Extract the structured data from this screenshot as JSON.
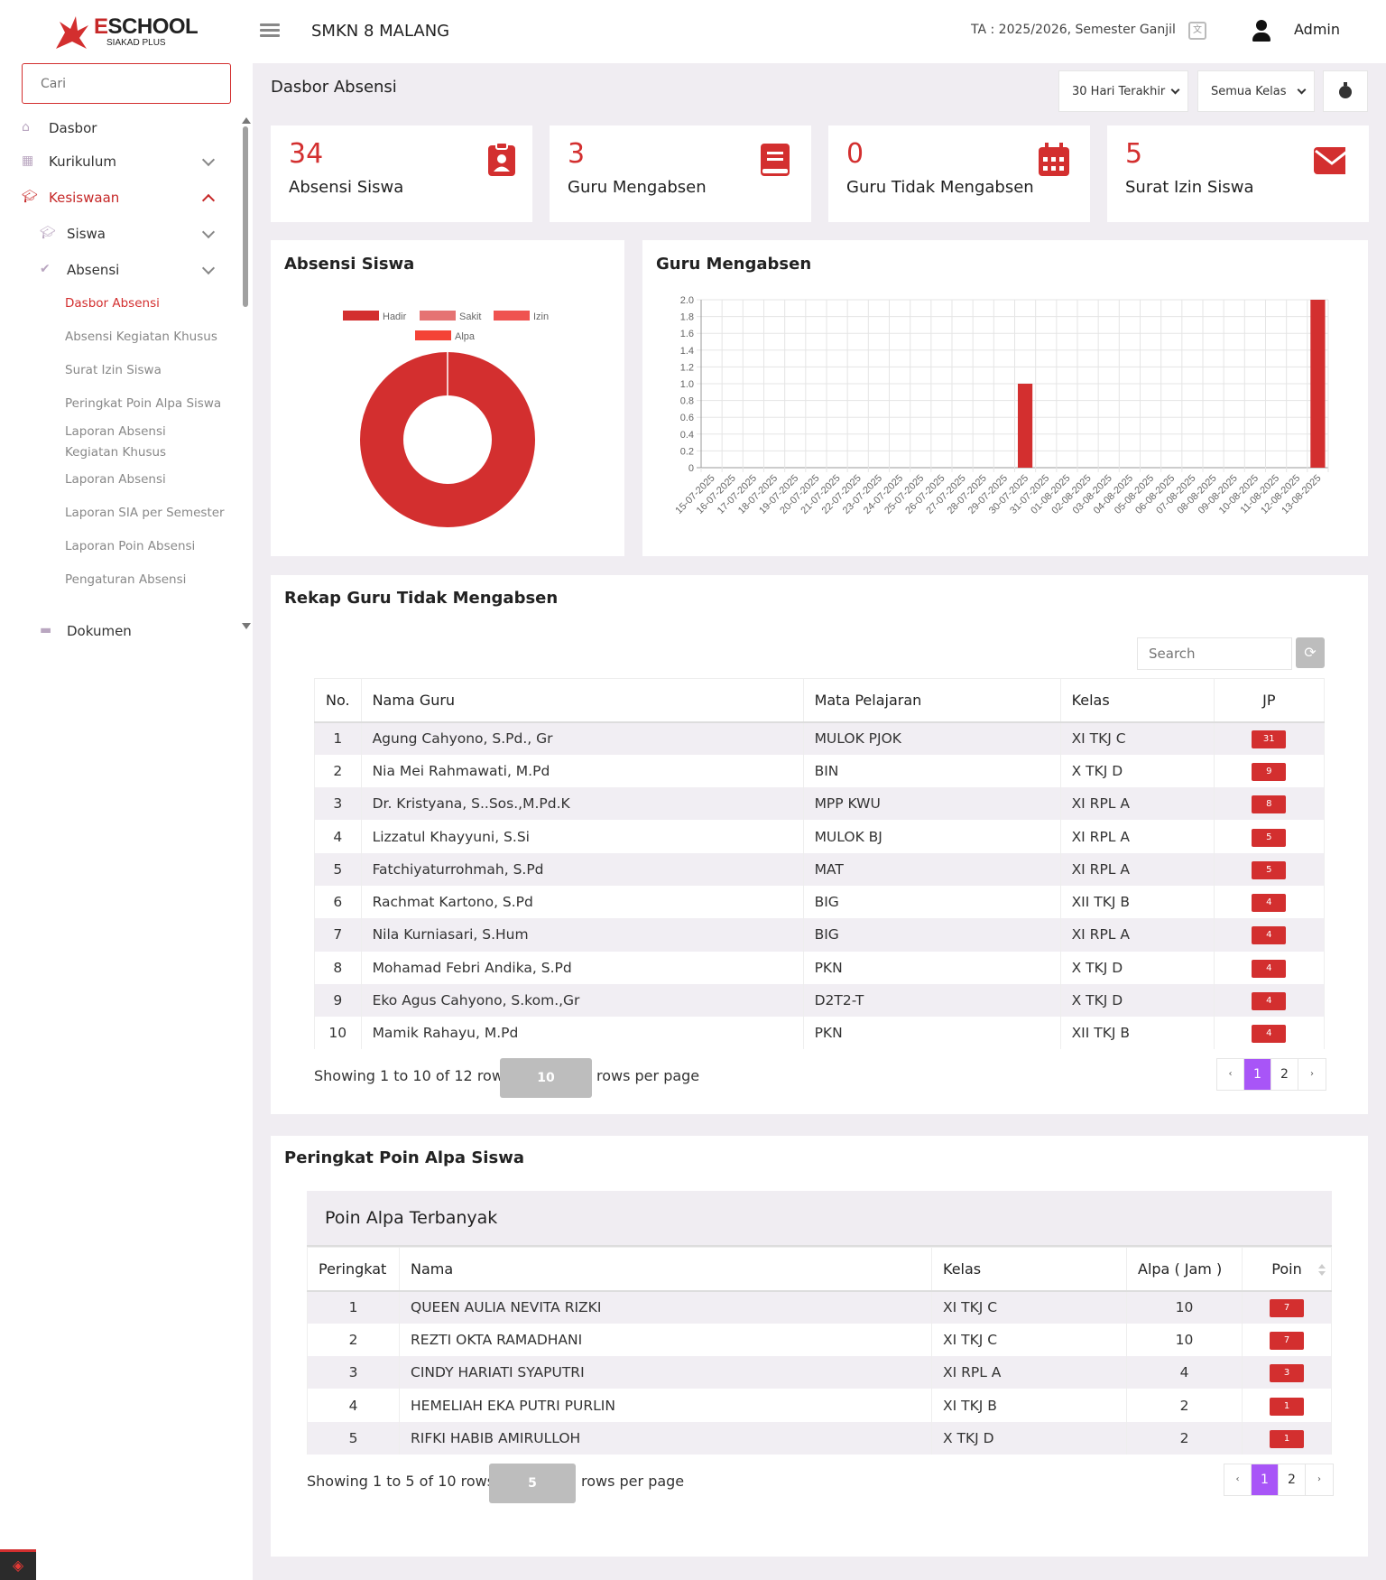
{
  "header": {
    "brand_e": "E",
    "brand_rest": "SCHOOL",
    "brand_sub": "SIAKAD PLUS",
    "school": "SMKN 8 MALANG",
    "ta": "TA : 2025/2026, Semester Ganjil",
    "user": "Admin"
  },
  "sidebar": {
    "search_placeholder": "Cari",
    "dasbor": "Dasbor",
    "kurikulum": "Kurikulum",
    "kesiswaan": "Kesiswaan",
    "siswa": "Siswa",
    "absensi": "Absensi",
    "links": [
      "Dasbor Absensi",
      "Absensi Kegiatan Khusus",
      "Surat Izin Siswa",
      "Peringkat Poin Alpa Siswa",
      "Laporan Absensi Kegiatan Khusus",
      "Laporan Absensi",
      "Laporan SIA per Semester",
      "Laporan Poin Absensi",
      "Pengaturan Absensi"
    ],
    "dokumen": "Dokumen"
  },
  "page": {
    "title": "Dasbor Absensi",
    "range_select": "30 Hari Terakhir",
    "class_select": "Semua Kelas"
  },
  "stats": [
    {
      "value": "34",
      "label": "Absensi Siswa",
      "icon": "clipboard-user-icon"
    },
    {
      "value": "3",
      "label": "Guru Mengabsen",
      "icon": "book-icon"
    },
    {
      "value": "0",
      "label": "Guru Tidak Mengabsen",
      "icon": "calendar-icon"
    },
    {
      "value": "5",
      "label": "Surat Izin Siswa",
      "icon": "envelope-icon"
    }
  ],
  "colors": {
    "accent": "#d32f2f",
    "pager_active": "#a855f7"
  },
  "chart_data": [
    {
      "type": "pie",
      "title": "Absensi Siswa",
      "labels": [
        "Hadir",
        "Sakit",
        "Izin",
        "Alpa"
      ],
      "values": [
        34,
        0,
        0,
        0
      ],
      "colors": [
        "#d32f2f",
        "#e57373",
        "#ef5350",
        "#f44336"
      ],
      "legend": "top"
    },
    {
      "type": "bar",
      "title": "Guru Mengabsen",
      "categories": [
        "15-07-2025",
        "16-07-2025",
        "17-07-2025",
        "18-07-2025",
        "19-07-2025",
        "20-07-2025",
        "21-07-2025",
        "22-07-2025",
        "23-07-2025",
        "24-07-2025",
        "25-07-2025",
        "26-07-2025",
        "27-07-2025",
        "28-07-2025",
        "29-07-2025",
        "30-07-2025",
        "31-07-2025",
        "01-08-2025",
        "02-08-2025",
        "03-08-2025",
        "04-08-2025",
        "05-08-2025",
        "06-08-2025",
        "07-08-2025",
        "08-08-2025",
        "09-08-2025",
        "10-08-2025",
        "11-08-2025",
        "12-08-2025",
        "13-08-2025"
      ],
      "values": [
        0,
        0,
        0,
        0,
        0,
        0,
        0,
        0,
        0,
        0,
        0,
        0,
        0,
        0,
        0,
        1,
        0,
        0,
        0,
        0,
        0,
        0,
        0,
        0,
        0,
        0,
        0,
        0,
        0,
        2
      ],
      "yticks": [
        "0",
        "0.2",
        "0.4",
        "0.6",
        "0.8",
        "1.0",
        "1.2",
        "1.4",
        "1.6",
        "1.8",
        "2.0"
      ],
      "ylim": [
        0,
        2
      ]
    }
  ],
  "rekap": {
    "title": "Rekap Guru Tidak Mengabsen",
    "search_placeholder": "Search",
    "columns": [
      "No.",
      "Nama Guru",
      "Mata Pelajaran",
      "Kelas",
      "JP"
    ],
    "rows": [
      [
        "1",
        "Agung Cahyono, S.Pd., Gr",
        "MULOK PJOK",
        "XI TKJ C",
        "31"
      ],
      [
        "2",
        "Nia Mei Rahmawati, M.Pd",
        "BIN",
        "X TKJ D",
        "9"
      ],
      [
        "3",
        "Dr. Kristyana, S..Sos.,M.Pd.K",
        "MPP KWU",
        "XI RPL A",
        "8"
      ],
      [
        "4",
        "Lizzatul Khayyuni, S.Si",
        "MULOK BJ",
        "XI RPL A",
        "5"
      ],
      [
        "5",
        "Fatchiyaturrohmah, S.Pd",
        "MAT",
        "XI RPL A",
        "5"
      ],
      [
        "6",
        "Rachmat Kartono, S.Pd",
        "BIG",
        "XII TKJ B",
        "4"
      ],
      [
        "7",
        "Nila Kurniasari, S.Hum",
        "BIG",
        "XI RPL A",
        "4"
      ],
      [
        "8",
        "Mohamad Febri Andika, S.Pd",
        "PKN",
        "X TKJ D",
        "4"
      ],
      [
        "9",
        "Eko Agus Cahyono, S.kom.,Gr",
        "D2T2-T",
        "X TKJ D",
        "4"
      ],
      [
        "10",
        "Mamik Rahayu, M.Pd",
        "PKN",
        "XII TKJ B",
        "4"
      ]
    ],
    "showing": "Showing 1 to 10 of 12 rows",
    "per_page": "10",
    "rows_per_page": "rows per page",
    "pages": [
      "‹",
      "1",
      "2",
      "›"
    ]
  },
  "peringkat": {
    "title": "Peringkat Poin Alpa Siswa",
    "panel": "Poin Alpa Terbanyak",
    "columns": [
      "Peringkat",
      "Nama",
      "Kelas",
      "Alpa ( Jam )",
      "Poin"
    ],
    "rows": [
      [
        "1",
        "QUEEN AULIA NEVITA RIZKI",
        "XI TKJ C",
        "10",
        "7"
      ],
      [
        "2",
        "REZTI OKTA RAMADHANI",
        "XI TKJ C",
        "10",
        "7"
      ],
      [
        "3",
        "CINDY HARIATI SYAPUTRI",
        "XI RPL A",
        "4",
        "3"
      ],
      [
        "4",
        "HEMELIAH EKA PUTRI PURLIN",
        "XI TKJ B",
        "2",
        "1"
      ],
      [
        "5",
        "RIFKI HABIB AMIRULLOH",
        "X TKJ D",
        "2",
        "1"
      ]
    ],
    "showing": "Showing 1 to 5 of 10 rows",
    "per_page": "5",
    "rows_per_page": "rows per page",
    "pages": [
      "‹",
      "1",
      "2",
      "›"
    ]
  }
}
